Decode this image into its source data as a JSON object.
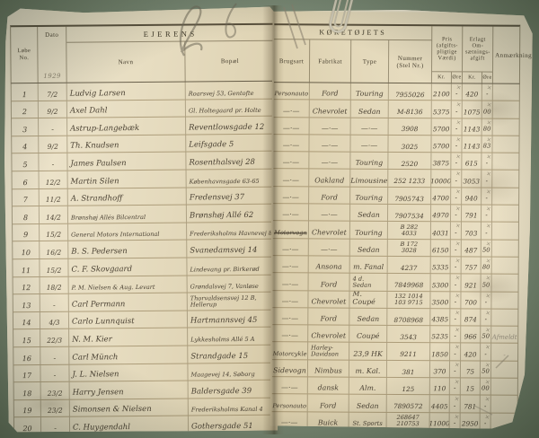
{
  "meta": {
    "tick": "×"
  },
  "left_page": {
    "title": "EJERENS",
    "col_no": "Løbe\nNo.",
    "col_dato": "Dato",
    "year": "1929",
    "col_navn": "Navn",
    "col_bopael": "Bopæl"
  },
  "right_page": {
    "title": "KØRETØJETS",
    "col_brugsart": "Brugsart",
    "col_fabrikat": "Fabrikat",
    "col_type": "Type",
    "col_nummer": "Nummer\n(Stel Nr.)",
    "col_pris": "Pris (afgifts­pligtige Værdi)",
    "col_afgift": "Erlagt Om­sætnings­afgift",
    "col_anm": "Anmærkning",
    "sub_kr": "Kr.",
    "sub_ore": "Øre"
  },
  "rows": [
    {
      "no": "1",
      "dato": "7/2",
      "navn": "Ludvig Larsen",
      "bopael": "Roarsvej 53, Gentofte",
      "brugsart": "Personauto",
      "fabrikat": "Ford",
      "type": "Touring",
      "nummer": "7955026",
      "pris": "2100",
      "pris_o": "-",
      "afgift": "420",
      "afgift_o": "-",
      "anm": ""
    },
    {
      "no": "2",
      "dato": "9/2",
      "navn": "Axel Dahl",
      "bopael": "Gl. Holtegaard pr. Holte",
      "brugsart": "—·—",
      "fabrikat": "Chevrolet",
      "type": "Sedan",
      "nummer": "M-8136",
      "pris": "5375",
      "pris_o": "-",
      "afgift": "1075",
      "afgift_o": "00",
      "anm": ""
    },
    {
      "no": "3",
      "dato": "-",
      "navn": "Astrup-Langebæk",
      "bopael": "Reventlowsgade 12",
      "brugsart": "—·—",
      "fabrikat": "—·—",
      "type": "—·—",
      "nummer": "3908",
      "pris": "5700",
      "pris_o": "-",
      "afgift": "1143",
      "afgift_o": "80",
      "anm": ""
    },
    {
      "no": "4",
      "dato": "9/2",
      "navn": "Th. Knudsen",
      "bopael": "Leifsgade 5",
      "brugsart": "—·—",
      "fabrikat": "—·—",
      "type": "—·—",
      "nummer": "3025",
      "pris": "5700",
      "pris_o": "-",
      "afgift": "1143",
      "afgift_o": "83",
      "anm": ""
    },
    {
      "no": "5",
      "dato": "-",
      "navn": "James Paulsen",
      "bopael": "Rosenthalsvej 28",
      "brugsart": "—·—",
      "fabrikat": "—·—",
      "type": "Touring",
      "nummer": "2520",
      "pris": "3875",
      "pris_o": "-",
      "afgift": "615",
      "afgift_o": "-",
      "anm": ""
    },
    {
      "no": "6",
      "dato": "12/2",
      "navn": "Martin Silen",
      "bopael": "Københavnsgade 63-65",
      "brugsart": "—·—",
      "fabrikat": "Oakland",
      "type": "Limousine",
      "nummer": "252 1233",
      "pris": "10000",
      "pris_o": "-",
      "afgift": "3053",
      "afgift_o": "-",
      "anm": ""
    },
    {
      "no": "7",
      "dato": "11/2",
      "navn": "A. Strandhoff",
      "bopael": "Fredensvej 37",
      "brugsart": "—·—",
      "fabrikat": "Ford",
      "type": "Touring",
      "nummer": "7905743",
      "pris": "4700",
      "pris_o": "-",
      "afgift": "940",
      "afgift_o": "-",
      "anm": ""
    },
    {
      "no": "8",
      "dato": "14/2",
      "navn": "Brønshøj Allés Bilcentral",
      "bopael": "Brønshøj Allé 62",
      "brugsart": "—·—",
      "fabrikat": "—·—",
      "type": "Sedan",
      "nummer": "7907534",
      "pris": "4970",
      "pris_o": "-",
      "afgift": "791",
      "afgift_o": "-",
      "anm": ""
    },
    {
      "no": "9",
      "dato": "15/2",
      "navn": "General Motors International",
      "bopael": "Frederiksholms Havnevej 8",
      "brugsart": "Motorvogn",
      "strike": true,
      "fabrikat": "Chevrolet",
      "type": "Touring",
      "nummer": "B 282\n4033",
      "pris": "4031",
      "pris_o": "-",
      "afgift": "703",
      "afgift_o": "-",
      "anm": ""
    },
    {
      "no": "10",
      "dato": "16/2",
      "navn": "B. S. Pedersen",
      "bopael": "Svanedamsvej 14",
      "brugsart": "—·—",
      "fabrikat": "—·—",
      "type": "Sedan",
      "nummer": "B 172\n3028",
      "pris": "6150",
      "pris_o": "-",
      "afgift": "487",
      "afgift_o": "50",
      "anm": ""
    },
    {
      "no": "11",
      "dato": "15/2",
      "navn": "C. F. Skovgaard",
      "bopael": "Lindevang pr. Birkerød",
      "brugsart": "—·—",
      "fabrikat": "Ansona",
      "type": "m. Fanal",
      "nummer": "4237",
      "pris": "5335",
      "pris_o": "-",
      "afgift": "757",
      "afgift_o": "80",
      "anm": ""
    },
    {
      "no": "12",
      "dato": "18/2",
      "navn": "P. M. Nielsen & Aug. Levart",
      "bopael": "Grøndalsvej 7, Vanløse",
      "brugsart": "—·—",
      "fabrikat": "Ford",
      "type": "4 d. Sedan",
      "nummer": "7849968",
      "pris": "5300",
      "pris_o": "-",
      "afgift": "921",
      "afgift_o": "50",
      "anm": ""
    },
    {
      "no": "13",
      "dato": "-",
      "navn": "Carl Permann",
      "bopael": "Thorvaldsensvej 12 B, Hellerup",
      "brugsart": "—·—",
      "fabrikat": "Chevrolet",
      "type": "M. Coupé",
      "nummer": "132 1014\n103 9715",
      "pris": "3500",
      "pris_o": "-",
      "afgift": "700",
      "afgift_o": "-",
      "anm": ""
    },
    {
      "no": "14",
      "dato": "4/3",
      "navn": "Carlo Lunnquist",
      "bopael": "Hartmannsvej 45",
      "brugsart": "—·—",
      "fabrikat": "Ford",
      "type": "Sedan",
      "nummer": "8708968",
      "pris": "4385",
      "pris_o": "-",
      "afgift": "874",
      "afgift_o": "-",
      "anm": ""
    },
    {
      "no": "15",
      "dato": "22/3",
      "navn": "N. M. Kier",
      "bopael": "Lykkesholms Allé 5 A",
      "brugsart": "—·—",
      "fabrikat": "Chevrolet",
      "type": "Coupé",
      "nummer": "3543",
      "pris": "5235",
      "pris_o": "-",
      "afgift": "966",
      "afgift_o": "50",
      "anm": "Afmeldt"
    },
    {
      "no": "16",
      "dato": "-",
      "navn": "Carl Münch",
      "bopael": "Strandgade 15",
      "brugsart": "Motorcykle",
      "fabrikat": "Harley-Davidson",
      "type": "23,9 HK",
      "nummer": "9211",
      "pris": "1850",
      "pris_o": "-",
      "afgift": "420",
      "afgift_o": "-",
      "anm": "-"
    },
    {
      "no": "17",
      "dato": "-",
      "navn": "J. L. Nielsen",
      "bopael": "Maagevej 14, Søborg",
      "brugsart": "Sidevogn",
      "fabrikat": "Nimbus",
      "type": "m. Kal.",
      "nummer": "381",
      "pris": "370",
      "pris_o": "-",
      "afgift": "75",
      "afgift_o": "50",
      "anm": ""
    },
    {
      "no": "18",
      "dato": "23/2",
      "navn": "Harry Jensen",
      "bopael": "Baldersgade 39",
      "brugsart": "—·—",
      "fabrikat": "dansk",
      "type": "Alm.",
      "nummer": "125",
      "pris": "110",
      "pris_o": "-",
      "afgift": "15",
      "afgift_o": "00",
      "anm": ""
    },
    {
      "no": "19",
      "dato": "23/2",
      "navn": "Simonsen & Nielsen",
      "bopael": "Frederiksholms Kanal 4",
      "brugsart": "Personauto",
      "fabrikat": "Ford",
      "type": "Sedan",
      "nummer": "7890572",
      "pris": "4405",
      "pris_o": "-",
      "afgift": "781",
      "afgift_o": "-",
      "anm": ""
    },
    {
      "no": "20",
      "dato": "-",
      "navn": "C. Huygendahl",
      "bopael": "Gothersgade 51",
      "brugsart": "—·—",
      "fabrikat": "Buick",
      "type": "St. Sports",
      "nummer": "268647\n210753",
      "pris": "11000",
      "pris_o": "-",
      "afgift": "2950",
      "afgift_o": "-",
      "anm": ""
    }
  ]
}
